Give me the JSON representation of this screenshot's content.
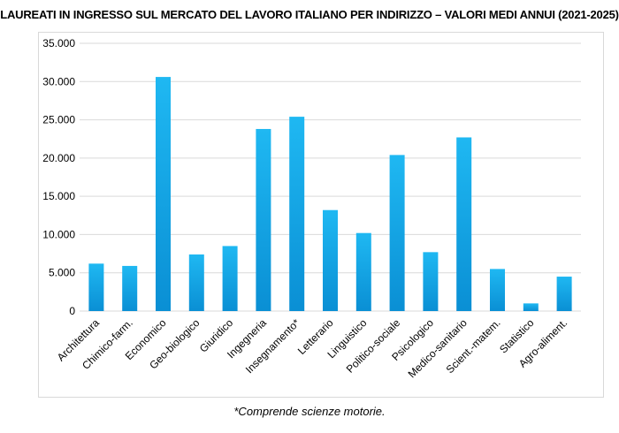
{
  "chart_data": {
    "type": "bar",
    "title": "LAUREATI IN INGRESSO SUL MERCATO DEL LAVORO ITALIANO PER INDIRIZZO – VALORI MEDI ANNUI (2021-2025)",
    "categories": [
      "Architettura",
      "Chimico-farm.",
      "Economico",
      "Geo-biologico",
      "Giuridico",
      "Ingegneria",
      "Insegnamento*",
      "Letterario",
      "Linguistico",
      "Politico-sociale",
      "Psicologico",
      "Medico-sanitario",
      "Scient.-matem.",
      "Statistico",
      "Agro-aliment."
    ],
    "values": [
      6200,
      5900,
      30600,
      7400,
      8500,
      23800,
      25400,
      13200,
      10200,
      20400,
      7700,
      22700,
      5500,
      1000,
      4500
    ],
    "yticks": [
      "0",
      "5.000",
      "10.000",
      "15.000",
      "20.000",
      "25.000",
      "30.000",
      "35.000"
    ],
    "ylim": [
      0,
      35000
    ],
    "xlabel": "",
    "ylabel": "",
    "grid": true,
    "legend": "none",
    "note": "*Comprende scienze motorie.",
    "colors": {
      "bar_top": "#1fb8f2",
      "bar_bottom": "#0a8fd4",
      "grid": "#d9d9d9"
    }
  }
}
